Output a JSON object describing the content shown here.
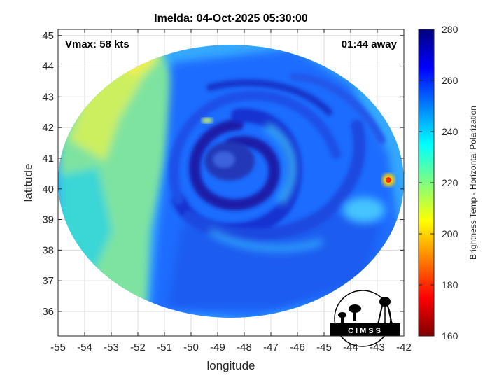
{
  "chart_data": {
    "type": "heatmap",
    "title": "Imelda: 04-Oct-2025 05:30:00",
    "xlabel": "longitude",
    "ylabel": "latitude",
    "xlim": [
      -55,
      -42
    ],
    "ylim": [
      35.2,
      45.2
    ],
    "x_ticks": [
      -55,
      -54,
      -53,
      -52,
      -51,
      -50,
      -49,
      -48,
      -47,
      -46,
      -45,
      -44,
      -43,
      -42
    ],
    "y_ticks": [
      36,
      37,
      38,
      39,
      40,
      41,
      42,
      43,
      44,
      45
    ],
    "grid": true,
    "annotations": {
      "vmax": "Vmax: 58 kts",
      "time_away": "01:44 away"
    },
    "storm_center": {
      "lon": -48.5,
      "lat": 41.0
    },
    "colorbar": {
      "label": "Brightness Temp - Horizontal Polarization",
      "range": [
        160,
        280
      ],
      "ticks": [
        160,
        180,
        200,
        220,
        240,
        260,
        280
      ],
      "colormap": "jet-reversed",
      "colors": [
        "#7f0000",
        "#ff0000",
        "#ff7f00",
        "#ffff00",
        "#7fff7f",
        "#00ffff",
        "#007fff",
        "#0000ff",
        "#00007f"
      ]
    },
    "field_description": {
      "spiral_cold_bands": "255-275",
      "background": "225-245",
      "yellow_west_strip": "205-215",
      "warm_spot": {
        "lon": -42.5,
        "lat": 40.2,
        "value": 190
      }
    },
    "logo": {
      "text": "CIMSS"
    }
  }
}
